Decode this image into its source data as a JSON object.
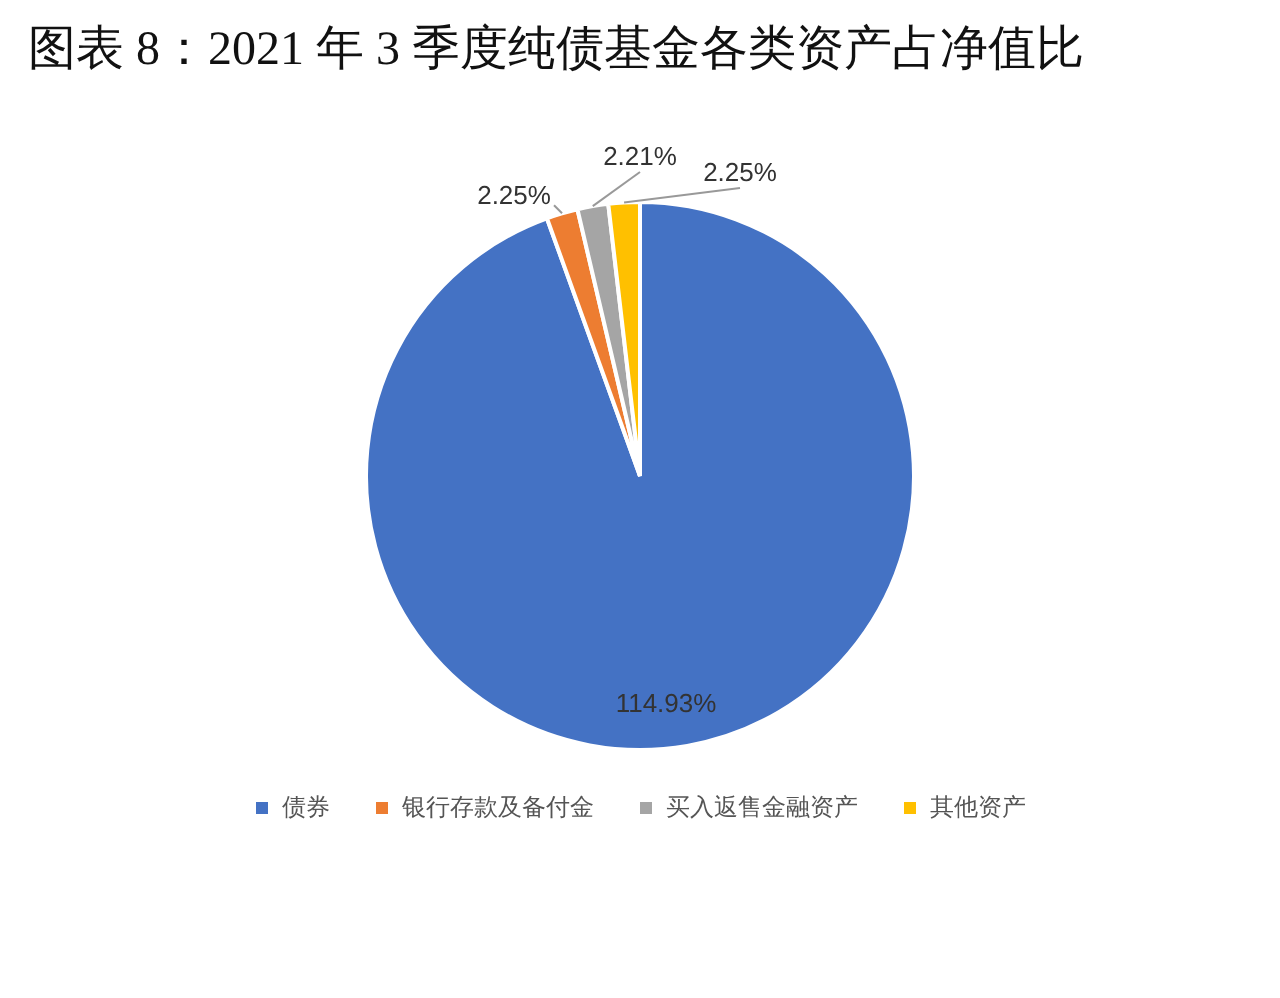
{
  "chart_data": {
    "type": "pie",
    "title": "图表 8：2021 年 3 季度纯债基金各类资产占净值比",
    "categories": [
      "债券",
      "银行存款及备付金",
      "买入返售金融资产",
      "其他资产"
    ],
    "values": [
      114.93,
      2.25,
      2.21,
      2.25
    ],
    "colors": [
      "#4472c4",
      "#ed7d31",
      "#a5a5a5",
      "#ffc000"
    ],
    "value_labels": [
      "114.93%",
      "2.25%",
      "2.21%",
      "2.25%"
    ],
    "legend": "bottom"
  }
}
